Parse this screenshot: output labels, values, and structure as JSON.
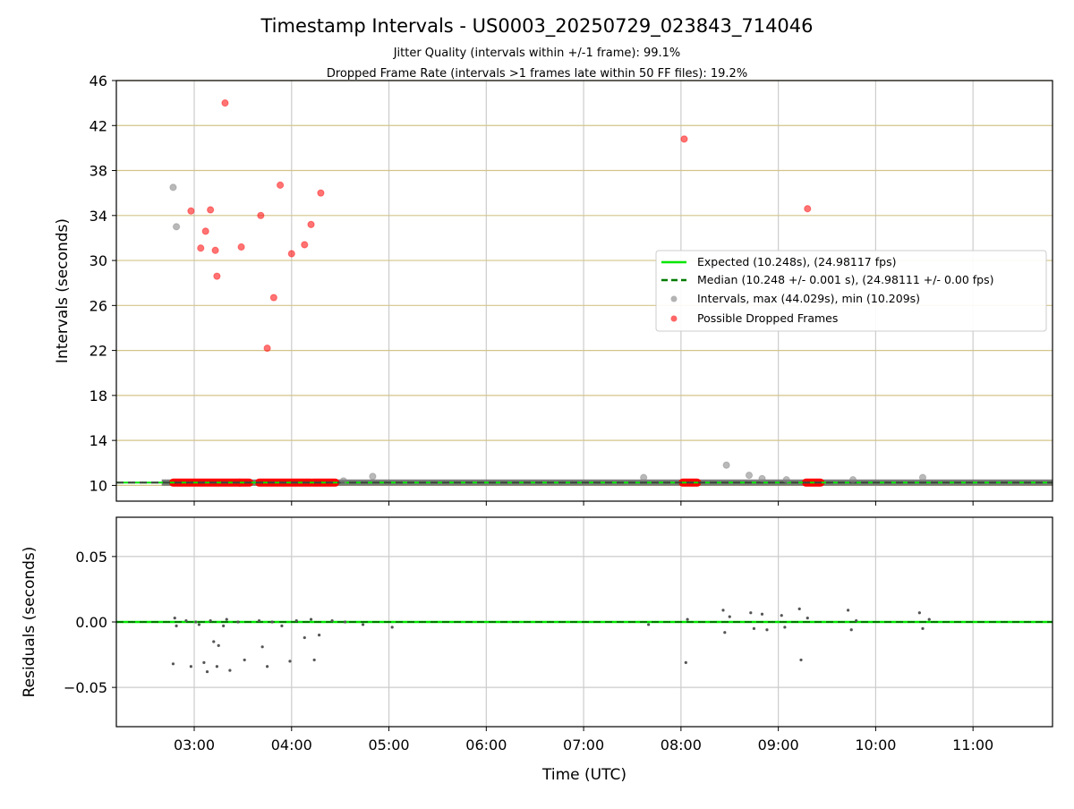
{
  "chart_data": {
    "type": "scatter",
    "title": "Timestamp Intervals - US0003_20250729_023843_714046",
    "subtitle_lines": [
      "Jitter Quality (intervals within +/-1 frame): 99.1%",
      "Dropped Frame Rate (intervals >1 frames late within 50 FF files): 19.2%"
    ],
    "xlabel": "Time (UTC)",
    "x_ticks": [
      "03:00",
      "04:00",
      "05:00",
      "06:00",
      "07:00",
      "08:00",
      "09:00",
      "10:00",
      "11:00"
    ],
    "x_range": [
      "02:12",
      "11:49"
    ],
    "top_panel": {
      "ylabel": "Intervals (seconds)",
      "ylim": [
        8.6,
        46
      ],
      "y_ticks": [
        10,
        14,
        18,
        22,
        26,
        30,
        34,
        38,
        42,
        46
      ],
      "grid": true,
      "legend_position": "center-right",
      "legend": [
        "Expected (10.248s), (24.98117 fps)",
        "Median (10.248 +/- 0.001 s), (24.98111 +/- 0.00 fps)",
        "Intervals, max (44.029s), min (10.209s)",
        "Possible Dropped Frames"
      ],
      "expected_value": 10.248,
      "median_value": 10.248,
      "series": [
        {
          "name": "Intervals, max (44.029s), min (10.209s)",
          "color": "#808080",
          "points": [
            [
              "02:47",
              36.5
            ],
            [
              "02:49",
              33.0
            ],
            [
              "04:32",
              10.4
            ],
            [
              "04:50",
              10.8
            ],
            [
              "07:37",
              10.7
            ],
            [
              "08:28",
              11.8
            ],
            [
              "08:42",
              10.9
            ],
            [
              "08:50",
              10.6
            ],
            [
              "09:05",
              10.5
            ],
            [
              "09:46",
              10.5
            ],
            [
              "10:29",
              10.7
            ]
          ]
        },
        {
          "name": "Possible Dropped Frames",
          "color": "#ff0000",
          "points": [
            [
              "02:58",
              34.4
            ],
            [
              "03:04",
              31.1
            ],
            [
              "03:07",
              32.6
            ],
            [
              "03:10",
              34.5
            ],
            [
              "03:13",
              30.9
            ],
            [
              "03:14",
              28.6
            ],
            [
              "03:19",
              44.0
            ],
            [
              "03:29",
              31.2
            ],
            [
              "03:41",
              34.0
            ],
            [
              "03:45",
              22.2
            ],
            [
              "03:49",
              26.7
            ],
            [
              "03:53",
              36.7
            ],
            [
              "04:00",
              30.6
            ],
            [
              "04:08",
              31.4
            ],
            [
              "04:12",
              33.2
            ],
            [
              "04:18",
              36.0
            ],
            [
              "08:02",
              40.8
            ],
            [
              "09:18",
              34.6
            ]
          ]
        }
      ],
      "dropped_frame_clusters": [
        [
          "02:47",
          "03:28"
        ],
        [
          "03:28",
          "03:34"
        ],
        [
          "03:40",
          "04:12"
        ],
        [
          "04:13",
          "04:27"
        ],
        [
          "08:01",
          "08:10"
        ],
        [
          "09:17",
          "09:26"
        ]
      ]
    },
    "bottom_panel": {
      "ylabel": "Residuals (seconds)",
      "ylim": [
        -0.08,
        0.08
      ],
      "y_ticks": [
        "0.05",
        "0.00",
        "−0.05"
      ],
      "y_tick_values": [
        0.05,
        0.0,
        -0.05
      ],
      "grid": true,
      "points": [
        [
          "02:47",
          -0.032
        ],
        [
          "02:48",
          0.003
        ],
        [
          "02:49",
          -0.003
        ],
        [
          "02:55",
          0.001
        ],
        [
          "02:58",
          -0.034
        ],
        [
          "03:01",
          0.0
        ],
        [
          "03:03",
          -0.002
        ],
        [
          "03:06",
          -0.031
        ],
        [
          "03:08",
          -0.038
        ],
        [
          "03:10",
          0.001
        ],
        [
          "03:12",
          -0.015
        ],
        [
          "03:14",
          -0.034
        ],
        [
          "03:15",
          -0.018
        ],
        [
          "03:18",
          -0.003
        ],
        [
          "03:20",
          0.002
        ],
        [
          "03:22",
          -0.037
        ],
        [
          "03:27",
          0.0
        ],
        [
          "03:31",
          -0.029
        ],
        [
          "03:40",
          0.001
        ],
        [
          "03:42",
          -0.019
        ],
        [
          "03:45",
          -0.034
        ],
        [
          "03:48",
          0.0
        ],
        [
          "03:54",
          -0.003
        ],
        [
          "03:59",
          -0.03
        ],
        [
          "04:03",
          0.001
        ],
        [
          "04:08",
          -0.012
        ],
        [
          "04:12",
          0.002
        ],
        [
          "04:14",
          -0.029
        ],
        [
          "04:17",
          -0.01
        ],
        [
          "04:25",
          0.001
        ],
        [
          "04:33",
          0.0
        ],
        [
          "04:44",
          -0.002
        ],
        [
          "05:02",
          -0.004
        ],
        [
          "07:40",
          -0.002
        ],
        [
          "08:03",
          -0.031
        ],
        [
          "08:04",
          0.002
        ],
        [
          "08:26",
          0.009
        ],
        [
          "08:27",
          -0.008
        ],
        [
          "08:30",
          0.004
        ],
        [
          "08:43",
          0.007
        ],
        [
          "08:45",
          -0.005
        ],
        [
          "08:50",
          0.006
        ],
        [
          "08:53",
          -0.006
        ],
        [
          "09:02",
          0.005
        ],
        [
          "09:04",
          -0.004
        ],
        [
          "09:13",
          0.01
        ],
        [
          "09:14",
          -0.029
        ],
        [
          "09:18",
          0.003
        ],
        [
          "09:43",
          0.009
        ],
        [
          "09:45",
          -0.006
        ],
        [
          "09:48",
          0.001
        ],
        [
          "10:27",
          0.007
        ],
        [
          "10:29",
          -0.005
        ],
        [
          "10:33",
          0.002
        ]
      ]
    },
    "colors": {
      "expected_line": "#00e600",
      "median_line": "#007a00",
      "intervals": "#808080",
      "dropped": "#ff0000",
      "hgrid_top": "#d4c48a",
      "grid": "#cccccc"
    }
  }
}
